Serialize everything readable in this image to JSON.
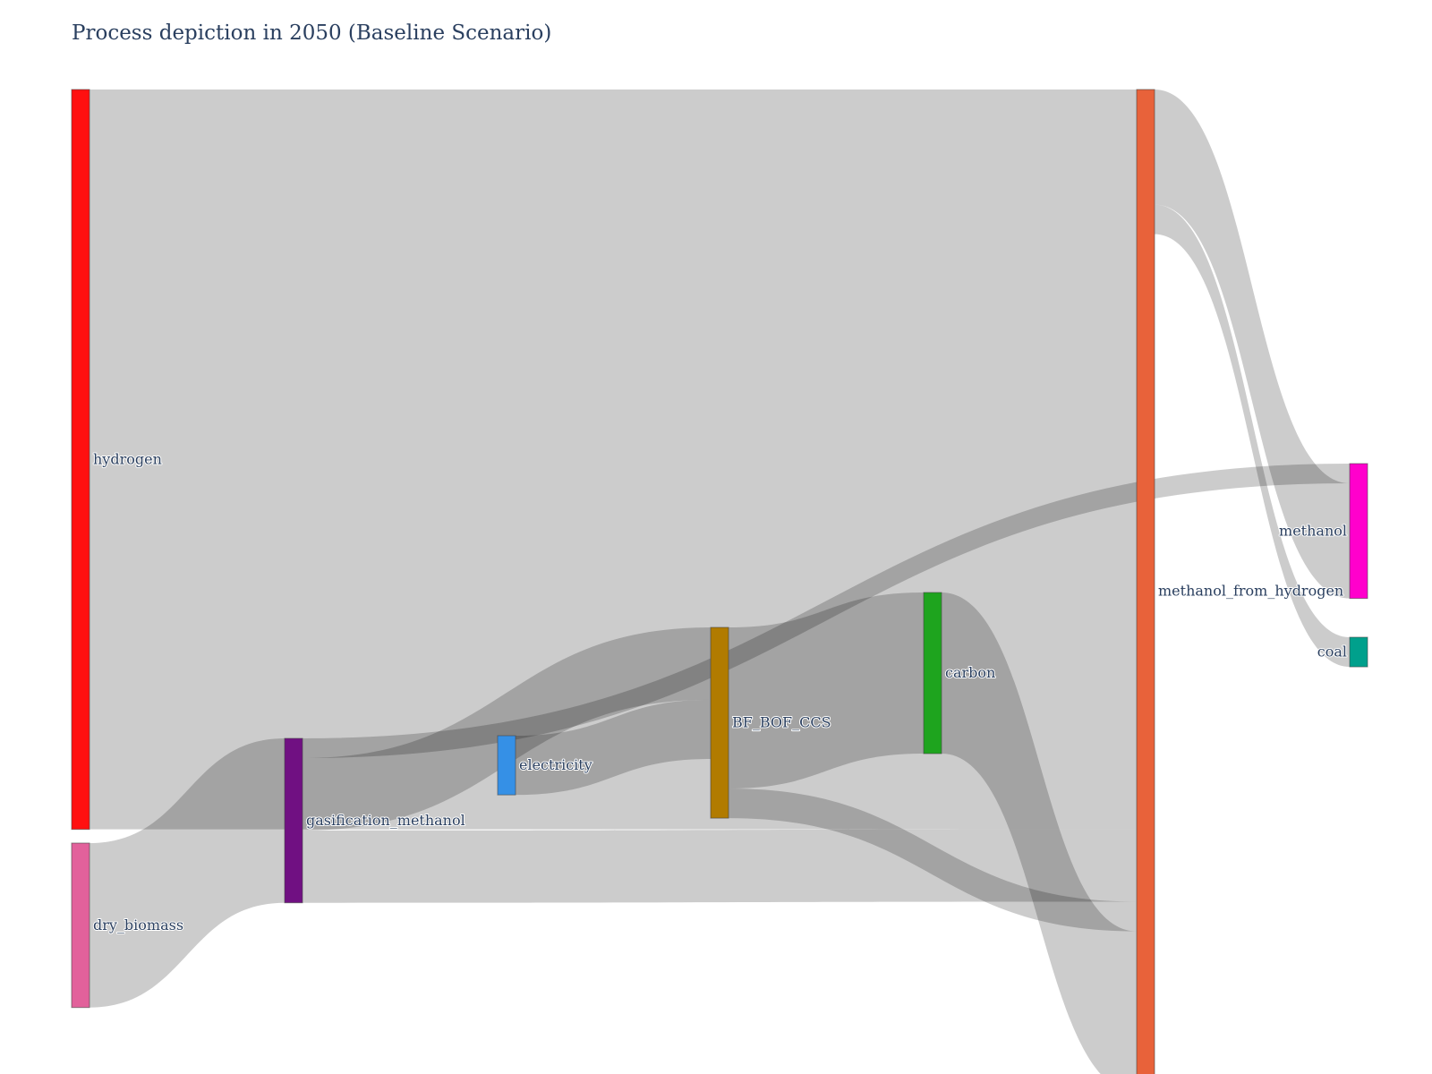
{
  "chart_data": {
    "type": "sankey",
    "title": "Process depiction in 2050 (Baseline Scenario)",
    "link_color": "#000000",
    "link_opacity": 0.2,
    "nodes": [
      {
        "id": "hydrogen",
        "label": "hydrogen",
        "color": "#ff1010",
        "column": 0,
        "label_side": "right"
      },
      {
        "id": "dry_biomass",
        "label": "dry_biomass",
        "color": "#e2619b",
        "column": 0,
        "label_side": "right"
      },
      {
        "id": "gasification_methanol",
        "label": "gasification_methanol",
        "color": "#701082",
        "column": 1,
        "label_side": "right"
      },
      {
        "id": "electricity",
        "label": "electricity",
        "color": "#3590e6",
        "column": 2,
        "label_side": "right"
      },
      {
        "id": "BF_BOF_CCS",
        "label": "BF_BOF_CCS",
        "color": "#b17b00",
        "column": 3,
        "label_side": "right"
      },
      {
        "id": "carbon",
        "label": "carbon",
        "color": "#1ea41e",
        "column": 4,
        "label_side": "right"
      },
      {
        "id": "methanol_from_hydrogen",
        "label": "methanol_from_hydrogen",
        "color": "#e8623a",
        "column": 5,
        "label_side": "right"
      },
      {
        "id": "methanol",
        "label": "methanol",
        "color": "#ff00cc",
        "column": 6,
        "label_side": "left"
      },
      {
        "id": "coal",
        "label": "coal",
        "color": "#00a08c",
        "column": 6,
        "label_side": "left"
      }
    ],
    "links": [
      {
        "source": "hydrogen",
        "target": "methanol_from_hydrogen",
        "value": 4500
      },
      {
        "source": "dry_biomass",
        "target": "gasification_methanol",
        "value": 1000
      },
      {
        "source": "gasification_methanol",
        "target": "methanol",
        "value": 120
      },
      {
        "source": "gasification_methanol",
        "target": "BF_BOF_CCS",
        "value": 440
      },
      {
        "source": "gasification_methanol",
        "target": "methanol_from_hydrogen",
        "value": 440
      },
      {
        "source": "electricity",
        "target": "BF_BOF_CCS",
        "value": 360
      },
      {
        "source": "BF_BOF_CCS",
        "target": "carbon",
        "value": 980
      },
      {
        "source": "BF_BOF_CCS",
        "target": "methanol_from_hydrogen",
        "value": 180
      },
      {
        "source": "carbon",
        "target": "methanol_from_hydrogen",
        "value": 980
      },
      {
        "source": "methanol_from_hydrogen",
        "target": "methanol",
        "value": 700
      },
      {
        "source": "methanol_from_hydrogen",
        "target": "coal",
        "value": 180
      }
    ]
  }
}
